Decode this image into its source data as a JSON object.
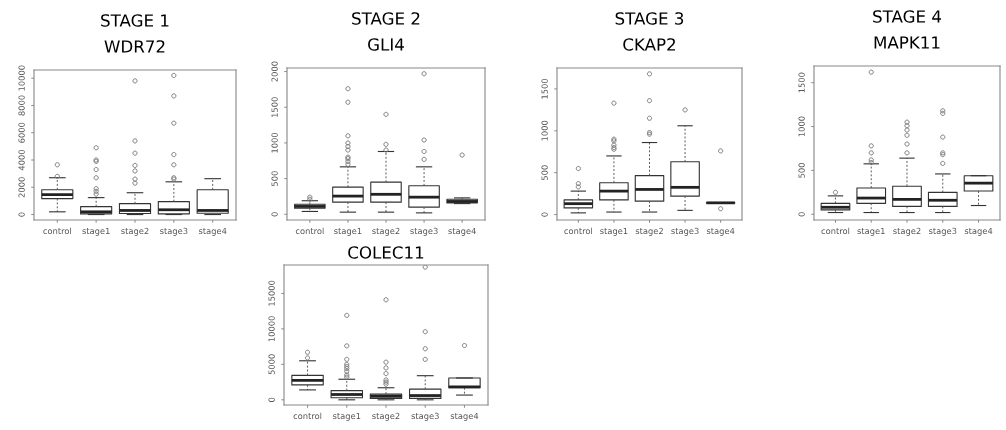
{
  "chart_data": [
    {
      "type": "box",
      "title": "STAGE 1",
      "subtitle": "WDR72",
      "categories": [
        "control",
        "stage1",
        "stage2",
        "stage3",
        "stage4"
      ],
      "ylim": [
        -400,
        10600
      ],
      "yticks": [
        0,
        2000,
        4000,
        6000,
        8000,
        10000
      ],
      "grid": false,
      "boxes": [
        {
          "low": 200,
          "q1": 1170,
          "median": 1460,
          "q3": 1820,
          "high": 2700,
          "outliers": [
            3650,
            2800
          ]
        },
        {
          "low": 0,
          "q1": 50,
          "median": 200,
          "q3": 580,
          "high": 1240,
          "outliers": [
            4900,
            4000,
            3900,
            3300,
            2700,
            1900,
            1700,
            1500
          ]
        },
        {
          "low": 0,
          "q1": 80,
          "median": 300,
          "q3": 800,
          "high": 1600,
          "outliers": [
            9800,
            5400,
            4500,
            3600,
            3200,
            2600,
            2300
          ]
        },
        {
          "low": 0,
          "q1": 50,
          "median": 350,
          "q3": 950,
          "high": 2400,
          "outliers": [
            10200,
            8700,
            6700,
            4400,
            3650,
            2700,
            2600
          ]
        },
        {
          "low": 0,
          "q1": 100,
          "median": 300,
          "q3": 1820,
          "high": 2630
        }
      ]
    },
    {
      "type": "box",
      "title": "STAGE 2",
      "subtitle": "GLI4",
      "categories": [
        "control",
        "stage1",
        "stage2",
        "stage3",
        "stage4"
      ],
      "ylim": [
        -80,
        2050
      ],
      "yticks": [
        0,
        500,
        1000,
        1500,
        2000
      ],
      "grid": false,
      "boxes": [
        {
          "low": 40,
          "q1": 85,
          "median": 110,
          "q3": 140,
          "high": 190,
          "outliers": [
            240,
            210
          ]
        },
        {
          "low": 30,
          "q1": 170,
          "median": 255,
          "q3": 380,
          "high": 665,
          "outliers": [
            1760,
            1570,
            1100,
            1000,
            950,
            900,
            800,
            780,
            740,
            700
          ]
        },
        {
          "low": 30,
          "q1": 170,
          "median": 280,
          "q3": 450,
          "high": 880,
          "outliers": [
            1400,
            980,
            900
          ]
        },
        {
          "low": 20,
          "q1": 100,
          "median": 240,
          "q3": 400,
          "high": 665,
          "outliers": [
            1970,
            1040,
            880,
            770
          ]
        },
        {
          "low": 150,
          "q1": 160,
          "median": 180,
          "q3": 210,
          "high": 230,
          "outliers": [
            830
          ]
        }
      ]
    },
    {
      "type": "box",
      "title": "STAGE 3",
      "subtitle": "CKAP2",
      "categories": [
        "control",
        "stage1",
        "stage2",
        "stage3",
        "stage4"
      ],
      "ylim": [
        -65,
        1750
      ],
      "yticks": [
        0,
        500,
        1000,
        1500
      ],
      "grid": false,
      "boxes": [
        {
          "low": 20,
          "q1": 80,
          "median": 130,
          "q3": 175,
          "high": 280,
          "outliers": [
            550,
            370,
            330
          ]
        },
        {
          "low": 30,
          "q1": 175,
          "median": 280,
          "q3": 380,
          "high": 700,
          "outliers": [
            1330,
            900,
            880,
            830,
            800,
            780
          ]
        },
        {
          "low": 30,
          "q1": 160,
          "median": 300,
          "q3": 465,
          "high": 860,
          "outliers": [
            1680,
            1360,
            1150,
            980,
            960
          ]
        },
        {
          "low": 50,
          "q1": 220,
          "median": 325,
          "q3": 630,
          "high": 1060,
          "outliers": [
            1250
          ]
        },
        {
          "low": 140,
          "q1": 140,
          "median": 140,
          "q3": 140,
          "high": 140,
          "outliers": [
            760,
            70
          ]
        }
      ]
    },
    {
      "type": "box",
      "title": "STAGE 4",
      "subtitle": "MAPK11",
      "categories": [
        "control",
        "stage1",
        "stage2",
        "stage3",
        "stage4"
      ],
      "ylim": [
        -65,
        1690
      ],
      "yticks": [
        0,
        500,
        1000,
        1500
      ],
      "grid": false,
      "boxes": [
        {
          "low": 20,
          "q1": 50,
          "median": 80,
          "q3": 125,
          "high": 210,
          "outliers": [
            250
          ]
        },
        {
          "low": 20,
          "q1": 125,
          "median": 185,
          "q3": 300,
          "high": 575,
          "outliers": [
            1620,
            780,
            700,
            620,
            590
          ]
        },
        {
          "low": 20,
          "q1": 90,
          "median": 170,
          "q3": 320,
          "high": 640,
          "outliers": [
            1050,
            1010,
            960,
            900,
            800,
            700
          ]
        },
        {
          "low": 20,
          "q1": 90,
          "median": 160,
          "q3": 250,
          "high": 460,
          "outliers": [
            1180,
            1150,
            880,
            700,
            680,
            580
          ]
        },
        {
          "low": 100,
          "q1": 265,
          "median": 355,
          "q3": 440,
          "high": 440
        }
      ]
    },
    {
      "type": "box",
      "title": "COLEC11",
      "categories": [
        "control",
        "stage1",
        "stage2",
        "stage3",
        "stage4"
      ],
      "ylim": [
        -730,
        19000
      ],
      "yticks": [
        0,
        5000,
        10000,
        15000
      ],
      "grid": false,
      "boxes": [
        {
          "low": 1400,
          "q1": 2100,
          "median": 2750,
          "q3": 3450,
          "high": 5500,
          "outliers": [
            6700,
            5900
          ]
        },
        {
          "low": 0,
          "q1": 300,
          "median": 750,
          "q3": 1300,
          "high": 2900,
          "outliers": [
            11900,
            7600,
            5700,
            5000,
            4700,
            4400,
            4000,
            3500,
            3200
          ]
        },
        {
          "low": 0,
          "q1": 200,
          "median": 500,
          "q3": 800,
          "high": 1700,
          "outliers": [
            14100,
            5300,
            4500,
            3700,
            2800,
            2500,
            2200
          ]
        },
        {
          "low": 0,
          "q1": 200,
          "median": 600,
          "q3": 1500,
          "high": 3400,
          "outliers": [
            18700,
            9600,
            7200,
            5700
          ]
        },
        {
          "low": 670,
          "q1": 1700,
          "median": 1830,
          "q3": 3080,
          "high": 3080,
          "outliers": [
            7650
          ]
        }
      ]
    }
  ]
}
